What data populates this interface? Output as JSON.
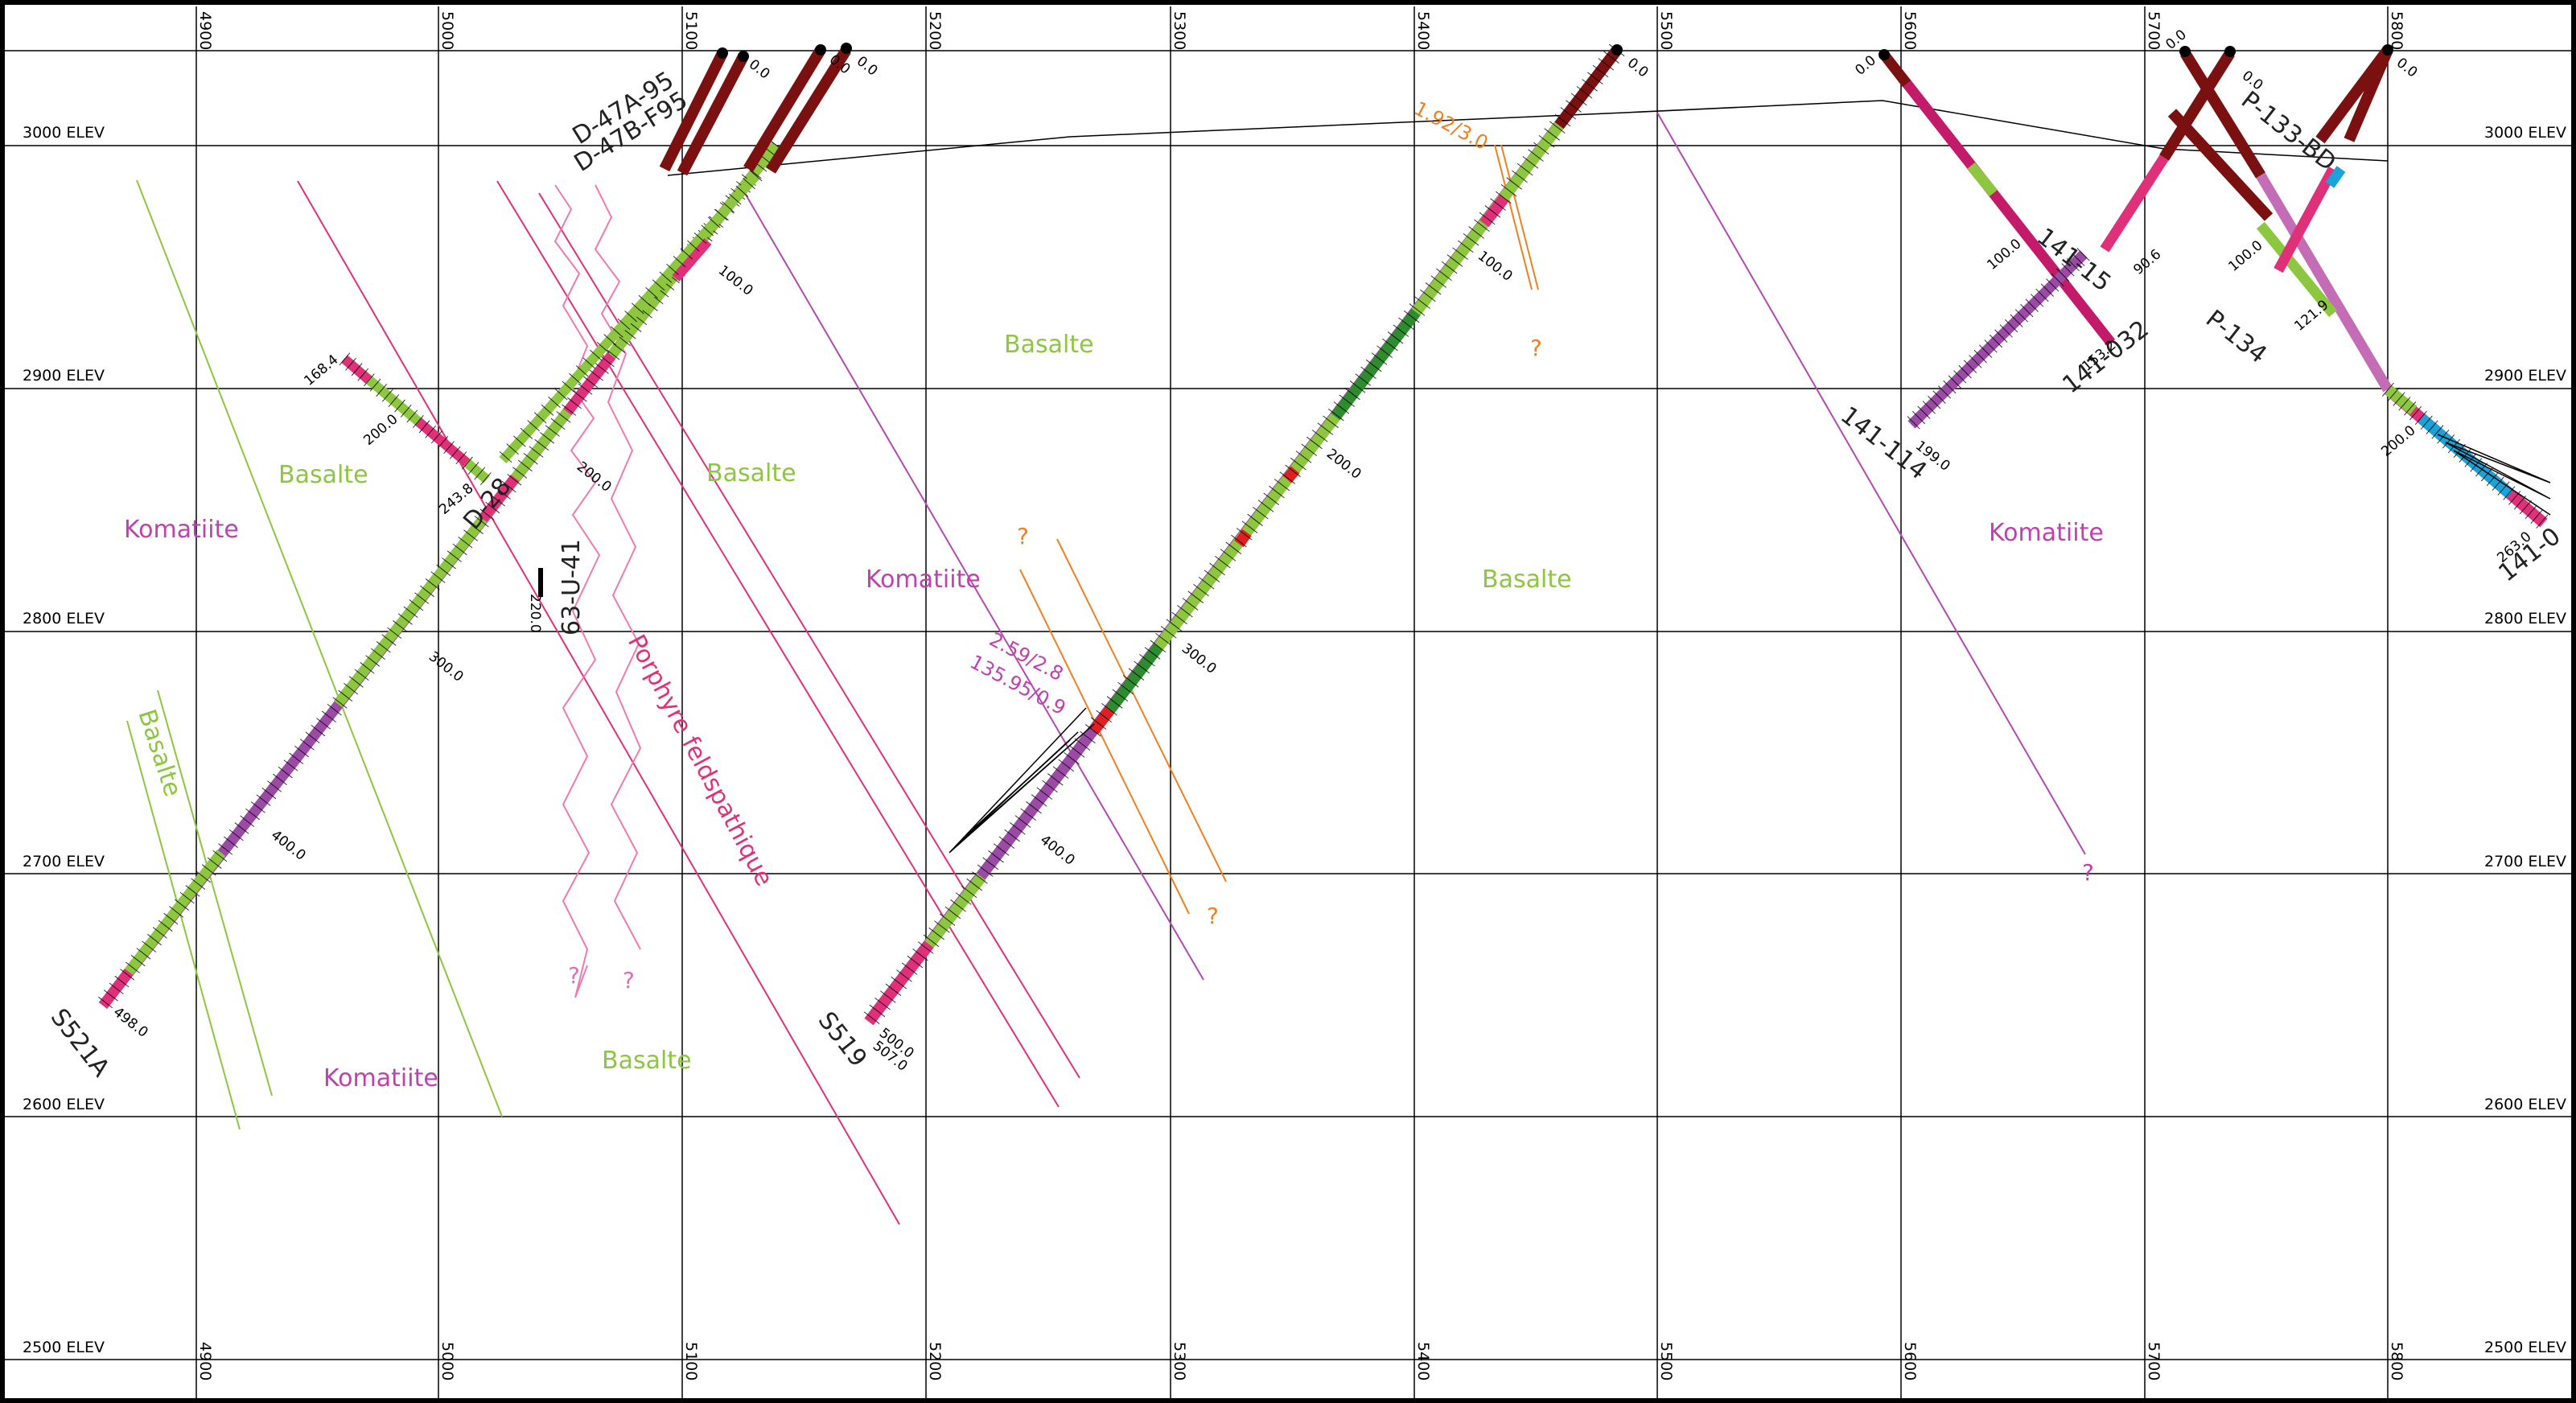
{
  "elevation_labels": [
    {
      "id": "3000",
      "text": "3000  ELEV"
    },
    {
      "id": "2900",
      "text": "2900  ELEV"
    },
    {
      "id": "2800",
      "text": "2800  ELEV"
    },
    {
      "id": "2700",
      "text": "2700  ELEV"
    },
    {
      "id": "2600",
      "text": "2600  ELEV"
    },
    {
      "id": "2500",
      "text": "2500  ELEV"
    }
  ],
  "easting_labels": [
    "4900",
    "5000",
    "5100",
    "5200",
    "5300",
    "5400",
    "5500",
    "5600",
    "5700",
    "5800"
  ],
  "rock_labels": {
    "komatiite_1": "Komatiite",
    "basalte_1": "Basalte",
    "basalte_2": "Basalte",
    "basalte_3": "Basalte",
    "basalte_4": "Basalte",
    "basalte_5": "Basalte",
    "komatiite_2": "Komatiite",
    "komatiite_3": "Komatiite",
    "basalte_6": "Basalte",
    "komatiite_4": "Komatiite",
    "porphyre": "Porphyre feldspathique"
  },
  "hole_names": {
    "s521a": "S521A",
    "s519": "S519",
    "d47a": "D-47A-95",
    "d47b": "D-47B-F95",
    "d28": "D-28",
    "h63u41": "63-U-41",
    "h141_114": "141-114",
    "h141_032": "141-032",
    "p134": "P-134",
    "p133": "P-133-BD",
    "h141_0": "141-0",
    "h141_5": "141-15"
  },
  "depth_labels": {
    "s521a_498": "498.0",
    "s521a_400": "400.0",
    "s521a_300": "300.0",
    "s521a_200": "200.0",
    "s521a_100": "100.0",
    "s519_500": "500.0",
    "s519_507": "507.0",
    "s519_400": "400.0",
    "s519_300": "300.0",
    "s519_200": "200.0",
    "s519_100": "100.0",
    "s519_0": "0.0",
    "d28_168": "168.4",
    "d28_200": "200.0",
    "d28_243": "243.8",
    "d47_0a": "0.0",
    "d47_0b": "0.0",
    "d47_0c": "0.0",
    "h141_114_0": "0.0",
    "h141_114_100": "100.0",
    "h141_114_199": "199.0",
    "h141_032_153": "153.2",
    "h141_032_0": "0.0",
    "p_0a": "0.0",
    "p_0b": "0.0",
    "p_100": "100.0",
    "p_90": "90.6",
    "p_121": "121.9",
    "h141_0_200": "200.0",
    "h141_0_263": "263.0",
    "h141_0_0": "0.0",
    "h63_220": "220.0"
  },
  "annotations": {
    "q1": "?",
    "q2": "?",
    "q3": "?",
    "q4": "?",
    "q5": "?",
    "q6": "?",
    "interval_1": "1.92/3.0",
    "interval_2": "2.59/2.8",
    "interval_3": "135.95/0.9"
  },
  "colors": {
    "komatiite": "#9b4aa6",
    "basalte": "#8dc63f",
    "basalte_dark": "#2e8b2e",
    "felsic": "#e0307a",
    "overburden": "#7a1010",
    "blue_unit": "#1aa3d8",
    "contact_orange": "#f08020",
    "grid": "#000000"
  }
}
